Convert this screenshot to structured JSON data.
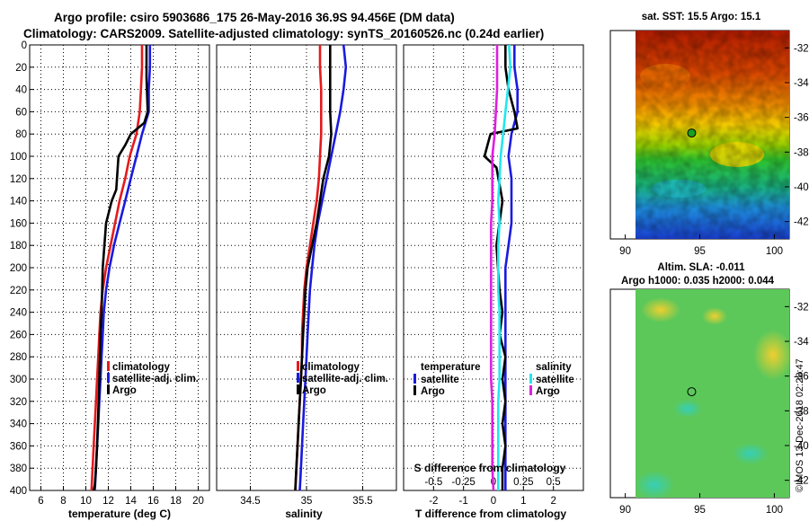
{
  "title": {
    "line1": "Argo profile: csiro 5903686_175 26-May-2016 36.9S 94.456E (DM data)",
    "line2": "Climatology: CARS2009. Satellite-adjusted climatology: synTS_20160526.nc (0.24d earlier)"
  },
  "credit": "©IMOS 13-Dec-2018 02:28:47",
  "colors": {
    "climatology": "#e41a1c",
    "satellite": "#1a1adf",
    "argo": "#000000",
    "sat_salinity": "#22e6f0",
    "argo_salinity": "#e01ee0",
    "grid": "#000000"
  },
  "chart_data": [
    {
      "type": "line",
      "id": "temperature",
      "xlabel": "temperature (deg C)",
      "ylabel": "depth",
      "xlim": [
        5,
        21
      ],
      "ylim": [
        400,
        0
      ],
      "xticks": [
        6,
        8,
        10,
        12,
        14,
        16,
        18,
        20
      ],
      "yticks": [
        0,
        20,
        40,
        60,
        80,
        100,
        120,
        140,
        160,
        180,
        200,
        220,
        240,
        260,
        280,
        300,
        320,
        340,
        360,
        380,
        400
      ],
      "legend": [
        "climatology",
        "satellite-adj. clim.",
        "Argo"
      ],
      "series": [
        {
          "name": "climatology",
          "x": [
            15.0,
            15.0,
            14.9,
            14.8,
            14.5,
            13.9,
            13.5,
            13.0,
            12.6,
            12.2,
            11.8,
            11.5,
            11.3,
            11.2,
            11.1,
            11.0,
            10.9,
            10.8,
            10.7,
            10.6,
            10.5
          ],
          "y": [
            0,
            20,
            40,
            60,
            80,
            100,
            120,
            140,
            160,
            180,
            200,
            220,
            240,
            260,
            280,
            300,
            320,
            340,
            360,
            380,
            400
          ]
        },
        {
          "name": "satellite-adj. clim.",
          "x": [
            15.7,
            15.7,
            15.6,
            15.6,
            15.0,
            14.5,
            14.0,
            13.5,
            13.0,
            12.5,
            12.1,
            11.8,
            11.6,
            11.5,
            11.4,
            11.3,
            11.2,
            11.1,
            11.0,
            10.9,
            10.8
          ],
          "y": [
            0,
            20,
            40,
            60,
            80,
            100,
            120,
            140,
            160,
            180,
            200,
            220,
            240,
            260,
            280,
            300,
            320,
            340,
            360,
            380,
            400
          ]
        },
        {
          "name": "Argo",
          "x": [
            15.4,
            15.4,
            15.4,
            15.5,
            15.2,
            14.0,
            13.5,
            13.2,
            12.9,
            12.7,
            12.3,
            11.8,
            11.5,
            11.4,
            11.3,
            11.2,
            11.1,
            11.0,
            10.9,
            10.8,
            10.7
          ],
          "y": [
            0,
            5,
            30,
            60,
            70,
            80,
            90,
            95,
            100,
            130,
            140,
            160,
            200,
            240,
            260,
            300,
            330,
            360,
            380,
            395,
            400
          ]
        }
      ]
    },
    {
      "type": "line",
      "id": "salinity",
      "xlabel": "salinity",
      "ylabel": "depth",
      "xlim": [
        34.2,
        35.8
      ],
      "ylim": [
        400,
        0
      ],
      "xticks": [
        34.5,
        35,
        35.5
      ],
      "legend": [
        "climatology",
        "satellite-adj. clim.",
        "Argo"
      ],
      "series": [
        {
          "name": "climatology",
          "x": [
            35.12,
            35.12,
            35.13,
            35.13,
            35.13,
            35.12,
            35.11,
            35.09,
            35.06,
            35.03,
            35.0,
            34.98,
            34.97,
            34.96,
            34.96,
            34.95,
            34.94,
            34.93,
            34.92,
            34.91,
            34.9
          ],
          "y": [
            0,
            20,
            40,
            60,
            80,
            100,
            120,
            140,
            160,
            180,
            200,
            220,
            240,
            260,
            280,
            300,
            320,
            340,
            360,
            380,
            400
          ]
        },
        {
          "name": "satellite-adj. clim.",
          "x": [
            35.33,
            35.35,
            35.33,
            35.3,
            35.26,
            35.22,
            35.18,
            35.14,
            35.1,
            35.07,
            35.05,
            35.03,
            35.02,
            35.01,
            35.0,
            34.99,
            34.98,
            34.97,
            34.96,
            34.95,
            34.94
          ],
          "y": [
            0,
            20,
            40,
            60,
            80,
            100,
            120,
            140,
            160,
            180,
            200,
            220,
            240,
            260,
            280,
            300,
            320,
            340,
            360,
            380,
            400
          ]
        },
        {
          "name": "Argo",
          "x": [
            35.21,
            35.21,
            35.21,
            35.21,
            35.22,
            35.2,
            35.15,
            35.12,
            35.09,
            35.05,
            35.01,
            34.99,
            34.98,
            34.97,
            34.96,
            34.95,
            34.94,
            34.93,
            34.92,
            34.91,
            34.9
          ],
          "y": [
            0,
            10,
            30,
            60,
            80,
            100,
            120,
            140,
            160,
            180,
            200,
            220,
            240,
            260,
            280,
            300,
            320,
            340,
            360,
            380,
            400
          ]
        }
      ]
    },
    {
      "type": "line",
      "id": "difference",
      "xlabel": "T difference from climatology",
      "xlabel_top": "S difference from climatology",
      "ylabel": "depth",
      "xlim": [
        -3,
        3
      ],
      "s_xlim": [
        -0.75,
        0.75
      ],
      "ylim": [
        400,
        0
      ],
      "xticks": [
        -2,
        -1,
        0,
        1,
        2
      ],
      "s_xticks": [
        "-0.5",
        "-0.25",
        "0",
        "0.25",
        "0.5"
      ],
      "legend_temperature": {
        "heading": "temperature",
        "items": [
          "satellite",
          "Argo"
        ]
      },
      "legend_salinity": {
        "heading": "salinity",
        "items": [
          "satellite",
          "Argo"
        ]
      },
      "series": [
        {
          "name": "T satellite",
          "x": [
            0.7,
            0.7,
            0.8,
            0.8,
            0.6,
            0.5,
            0.6,
            0.6,
            0.6,
            0.5,
            0.4,
            0.4,
            0.4,
            0.4,
            0.4,
            0.4,
            0.4,
            0.4,
            0.4,
            0.4,
            0.4
          ],
          "y": [
            0,
            20,
            40,
            60,
            80,
            100,
            120,
            140,
            160,
            180,
            200,
            220,
            240,
            260,
            280,
            300,
            320,
            340,
            360,
            380,
            400
          ]
        },
        {
          "name": "T Argo",
          "x": [
            0.4,
            0.4,
            0.5,
            0.7,
            0.8,
            -0.1,
            -0.2,
            -0.3,
            0.1,
            0.3,
            0.1,
            0.2,
            0.3,
            0.2,
            0.4,
            0.3,
            0.4,
            0.3,
            0.4,
            0.3,
            0.3
          ],
          "y": [
            0,
            20,
            40,
            60,
            75,
            80,
            90,
            100,
            110,
            140,
            180,
            220,
            240,
            260,
            280,
            300,
            320,
            340,
            360,
            380,
            400
          ]
        },
        {
          "name": "S satellite",
          "x": [
            0.13,
            0.14,
            0.12,
            0.1,
            0.08,
            0.06,
            0.05,
            0.04,
            0.05,
            0.04,
            0.04,
            0.04,
            0.05,
            0.05,
            0.05,
            0.05,
            0.04,
            0.04,
            0.04,
            0.04,
            0.04
          ],
          "y": [
            0,
            20,
            40,
            60,
            80,
            100,
            120,
            140,
            160,
            180,
            200,
            220,
            240,
            260,
            280,
            300,
            320,
            340,
            360,
            380,
            400
          ]
        },
        {
          "name": "S Argo",
          "x": [
            0.03,
            0.03,
            0.03,
            0.02,
            0.01,
            -0.01,
            -0.01,
            -0.01,
            -0.02,
            -0.02,
            -0.02,
            -0.02,
            -0.02,
            -0.02,
            -0.02,
            -0.02,
            -0.01,
            -0.01,
            -0.01,
            -0.01,
            0.0
          ],
          "y": [
            0,
            20,
            40,
            60,
            80,
            100,
            120,
            140,
            160,
            180,
            200,
            220,
            240,
            260,
            280,
            300,
            320,
            340,
            360,
            380,
            400
          ]
        }
      ]
    },
    {
      "type": "heatmap",
      "id": "sst-map",
      "title": "sat. SST: 15.5 Argo: 15.1",
      "xticks": [
        90,
        95,
        100
      ],
      "yticks": [
        -32,
        -34,
        -36,
        -38,
        -40,
        -42
      ],
      "xlim": [
        89,
        101
      ],
      "ylim": [
        -43,
        -31
      ],
      "marker": {
        "lon": 94.456,
        "lat": -36.9
      }
    },
    {
      "type": "heatmap",
      "id": "sla-map",
      "title": "Altim. SLA: -0.011",
      "subtitle": "Argo h1000: 0.035 h2000: 0.044",
      "xticks": [
        90,
        95,
        100
      ],
      "yticks": [
        -32,
        -34,
        -36,
        -38,
        -40,
        -42
      ],
      "xlim": [
        89,
        101
      ],
      "ylim": [
        -43,
        -31
      ],
      "marker": {
        "lon": 94.456,
        "lat": -36.9
      }
    }
  ]
}
